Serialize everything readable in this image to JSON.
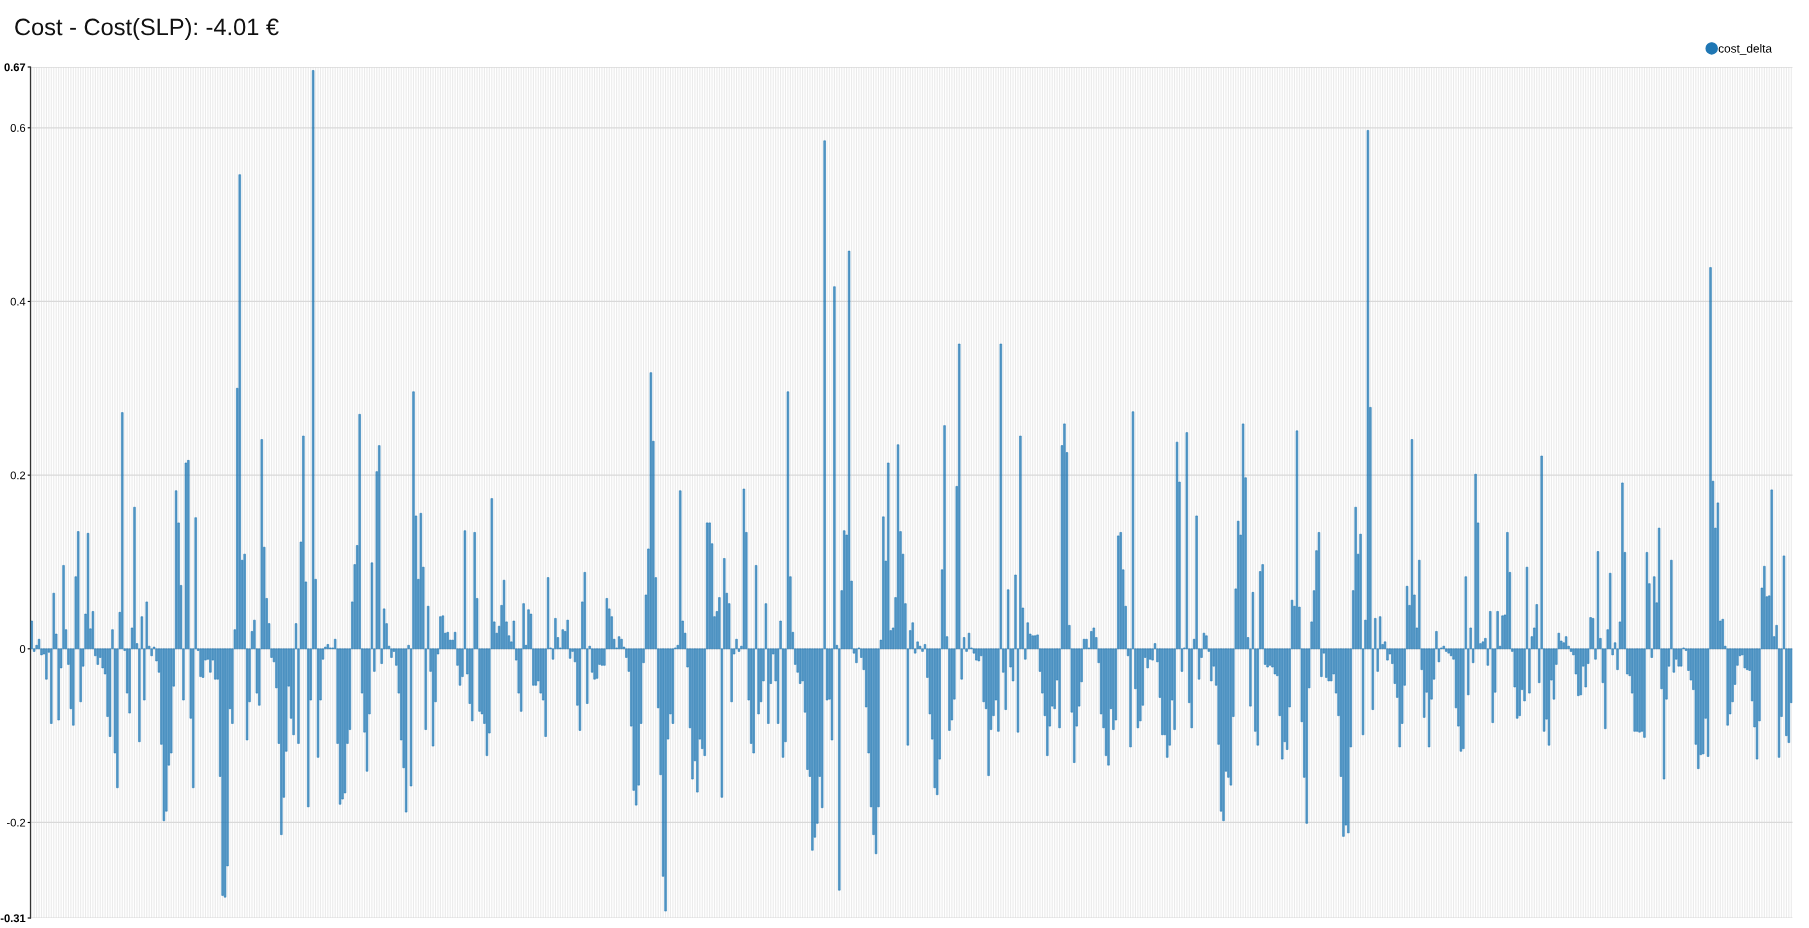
{
  "chart_data": {
    "type": "bar",
    "title": "Cost - Cost(SLP): -4.01 €",
    "categories": [
      null,
      null,
      null,
      null,
      null,
      null,
      null,
      null,
      null,
      null,
      null,
      null,
      null,
      null,
      null,
      null,
      null,
      null,
      null,
      null,
      null,
      null,
      null,
      null,
      null,
      null,
      null,
      null,
      null,
      null,
      null,
      null,
      null,
      null,
      null,
      null,
      null,
      null,
      null,
      null,
      null,
      null,
      null,
      null,
      null,
      null,
      null,
      null,
      null,
      null,
      null,
      null,
      null,
      null,
      null,
      null,
      null,
      null,
      null,
      null,
      null,
      null,
      null,
      null,
      null,
      null,
      null,
      null,
      null,
      null,
      null,
      null,
      null,
      null,
      null,
      null,
      null,
      null,
      null,
      null,
      null,
      null,
      null,
      null,
      null,
      null,
      null,
      null,
      null,
      null,
      null,
      null,
      null,
      null,
      null,
      null,
      null,
      null,
      null,
      null,
      null,
      null,
      null,
      null,
      null,
      null,
      null,
      null,
      null,
      null,
      null,
      null,
      null,
      null,
      null,
      null,
      null,
      null,
      null,
      null,
      null,
      null,
      null,
      null,
      null,
      null,
      null,
      null,
      null,
      null,
      null,
      null,
      null,
      null,
      null,
      null,
      null,
      null,
      null,
      null,
      null,
      null,
      null,
      null,
      null,
      null,
      null,
      null,
      null,
      null,
      null,
      null,
      null,
      null,
      null,
      null,
      null,
      null,
      null,
      null,
      null,
      null,
      null,
      null,
      null,
      null,
      null,
      null,
      null,
      null,
      null,
      null,
      null,
      null,
      null,
      null,
      null,
      null,
      null,
      null,
      null,
      null,
      null,
      null,
      null,
      null,
      null,
      null,
      null,
      null,
      null,
      null,
      null,
      null,
      null,
      null,
      null,
      null,
      null,
      null,
      null,
      null,
      null,
      null,
      null,
      null,
      null,
      null,
      null,
      null,
      null,
      null,
      null,
      null,
      null,
      null,
      null,
      null,
      null,
      null,
      null,
      null,
      null,
      null,
      null,
      null,
      null,
      null,
      null,
      null,
      null,
      null,
      null,
      null,
      null,
      null,
      null,
      null,
      null,
      null,
      null,
      null,
      null,
      null,
      null,
      null,
      null,
      null,
      null,
      null,
      null,
      null,
      null,
      null,
      null,
      null,
      null,
      null,
      null,
      null,
      null,
      null,
      null,
      null,
      null,
      null,
      null,
      null,
      null,
      null,
      null,
      null,
      null,
      null,
      null,
      null,
      null,
      null,
      null,
      null,
      null,
      null,
      null,
      null,
      null,
      null,
      null,
      null,
      null,
      null,
      null,
      null,
      null,
      null,
      null,
      null,
      null,
      null,
      null,
      null,
      null,
      null,
      null,
      null,
      null,
      null,
      null,
      null,
      null,
      null,
      null,
      null,
      null,
      null,
      null,
      null,
      null,
      null,
      null,
      null,
      null,
      null,
      null,
      null,
      null,
      null,
      null,
      null,
      null,
      null,
      null,
      null,
      null,
      null,
      null,
      null,
      null,
      null,
      null,
      null,
      null,
      null,
      null,
      null,
      null,
      null,
      null,
      null,
      null,
      null,
      null,
      null,
      null,
      null,
      null,
      null,
      null,
      null,
      null,
      null,
      null,
      null,
      null,
      null,
      null,
      null,
      null,
      null,
      null,
      null,
      null,
      null,
      null,
      null,
      null,
      null,
      null,
      null,
      null,
      null,
      null,
      null,
      null,
      null,
      null,
      null,
      null,
      null,
      null,
      null,
      null,
      null,
      null,
      null,
      null,
      null,
      null,
      null,
      null,
      null,
      null,
      null,
      null,
      null,
      null,
      null,
      null,
      null,
      null,
      null,
      null,
      null,
      null,
      null,
      null,
      null,
      null,
      null,
      null,
      null,
      null,
      null,
      null,
      null,
      null,
      null,
      null,
      null,
      null,
      null,
      null,
      null,
      null,
      null,
      null,
      null,
      null,
      null,
      null,
      null,
      null,
      null,
      null,
      null,
      null,
      null,
      null,
      null,
      null,
      null,
      null,
      null,
      null,
      null,
      null,
      null,
      null,
      null,
      null,
      null,
      null,
      null,
      null,
      null,
      null,
      null,
      null,
      null,
      null,
      null,
      null,
      null,
      null,
      null,
      null,
      null,
      null,
      null,
      null,
      null,
      null,
      null,
      null,
      null,
      null,
      null,
      null,
      null,
      null,
      null,
      null,
      null,
      null,
      null,
      null,
      null,
      null,
      null,
      null,
      null,
      null,
      null,
      null,
      null,
      null,
      null,
      null,
      null,
      null,
      null,
      null,
      null,
      null,
      null,
      null,
      null,
      null,
      null,
      null,
      null,
      null,
      null,
      null,
      null,
      null,
      null,
      null,
      null,
      null,
      null,
      null,
      null,
      null,
      null,
      null,
      null,
      null,
      null,
      null,
      null,
      null,
      null,
      null,
      null,
      null,
      null,
      null,
      null,
      null,
      null,
      null,
      null,
      null,
      null,
      null,
      null,
      null,
      null,
      null,
      null,
      null,
      null,
      null,
      null,
      null,
      null,
      null,
      null,
      null,
      null,
      null,
      null,
      null,
      null,
      null,
      null,
      null,
      null,
      null,
      null,
      null,
      null,
      null,
      null,
      null,
      null,
      null,
      null,
      null,
      null,
      null,
      null,
      null,
      null,
      null,
      null,
      null,
      null,
      null,
      null,
      null,
      null,
      null,
      null,
      null,
      null,
      null,
      null,
      null,
      null,
      null,
      null,
      null,
      null,
      null,
      null,
      null,
      null,
      null,
      null,
      null,
      null,
      null,
      null,
      null,
      null,
      null,
      null,
      null,
      null,
      null,
      null,
      null,
      null,
      null,
      null,
      null,
      null,
      null,
      null,
      null,
      null,
      null,
      null,
      null,
      null,
      null,
      null,
      null,
      null,
      null,
      null,
      null,
      null,
      null,
      null,
      null,
      null,
      null,
      null,
      null,
      null,
      null,
      null,
      null,
      null,
      null,
      null,
      null,
      null,
      null,
      null,
      null,
      null,
      null,
      null,
      null,
      null,
      null,
      null,
      null,
      null,
      null,
      null,
      null,
      null,
      null,
      null,
      null,
      null,
      null,
      null,
      null,
      null,
      null,
      null,
      null,
      null,
      null,
      null,
      null,
      null,
      null,
      null,
      null,
      null,
      null,
      null,
      null,
      null,
      null,
      null,
      null,
      null,
      null,
      null,
      null,
      null,
      null,
      null
    ],
    "series": [
      {
        "name": "cost_delta",
        "color": "#1f77b4",
        "values": [
          0.032,
          -0.003,
          0.004,
          0.011,
          -0.007,
          -0.006,
          -0.035,
          -0.004,
          -0.086,
          0.064,
          0.017,
          -0.082,
          -0.022,
          0.096,
          0.022,
          -0.018,
          -0.069,
          -0.088,
          0.083,
          0.135,
          -0.061,
          -0.02,
          0.04,
          0.133,
          0.023,
          0.043,
          -0.008,
          -0.018,
          -0.01,
          -0.022,
          -0.029,
          -0.078,
          -0.101,
          0.022,
          -0.12,
          -0.16,
          0.042,
          0.272,
          -0.002,
          -0.051,
          -0.074,
          0.024,
          0.163,
          0.006,
          -0.107,
          0.037,
          -0.059,
          0.054,
          0.003,
          -0.008,
          0.002,
          -0.014,
          -0.027,
          -0.11,
          -0.198,
          -0.187,
          -0.134,
          -0.12,
          -0.043,
          0.182,
          0.145,
          0.073,
          -0.059,
          0.214,
          0.217,
          -0.08,
          -0.16,
          0.151,
          -0.002,
          -0.032,
          -0.033,
          -0.013,
          -0.012,
          -0.027,
          -0.013,
          -0.035,
          -0.035,
          -0.147,
          -0.284,
          -0.286,
          -0.25,
          -0.069,
          -0.086,
          0.022,
          0.3,
          0.546,
          0.102,
          0.109,
          -0.105,
          -0.061,
          0.02,
          0.033,
          -0.051,
          -0.065,
          0.241,
          0.117,
          0.058,
          0.029,
          -0.01,
          -0.015,
          -0.045,
          -0.109,
          -0.214,
          -0.171,
          -0.118,
          -0.043,
          -0.08,
          -0.099,
          0.029,
          -0.109,
          0.123,
          0.245,
          0.077,
          -0.182,
          -0.059,
          0.666,
          0.08,
          -0.125,
          -0.059,
          -0.012,
          0.002,
          0.005,
          0.001,
          0.001,
          0.011,
          -0.109,
          -0.179,
          -0.173,
          -0.166,
          -0.109,
          -0.093,
          0.054,
          0.097,
          0.119,
          0.27,
          -0.051,
          -0.096,
          -0.141,
          -0.075,
          0.099,
          -0.026,
          0.204,
          0.234,
          -0.017,
          0.046,
          0.029,
          0.003,
          -0.01,
          -0.003,
          -0.019,
          -0.051,
          -0.105,
          -0.137,
          -0.188,
          0.004,
          -0.158,
          0.296,
          0.153,
          0.08,
          0.156,
          0.094,
          -0.093,
          0.049,
          -0.026,
          -0.112,
          -0.061,
          -0.006,
          0.037,
          0.038,
          0.018,
          0.019,
          0.01,
          0.01,
          0.019,
          -0.019,
          -0.042,
          -0.032,
          0.136,
          -0.029,
          -0.063,
          -0.083,
          0.134,
          0.058,
          -0.072,
          -0.075,
          -0.086,
          -0.123,
          -0.097,
          0.173,
          0.031,
          0.018,
          0.026,
          0.05,
          0.079,
          0.031,
          0.015,
          0.008,
          0.032,
          -0.013,
          -0.051,
          -0.072,
          0.052,
          0.004,
          0.045,
          0.04,
          -0.042,
          -0.042,
          -0.037,
          -0.051,
          -0.059,
          -0.101,
          0.082,
          0.001,
          -0.012,
          0.035,
          0.013,
          0.001,
          0.022,
          0.02,
          0.033,
          -0.011,
          -0.003,
          -0.015,
          -0.065,
          -0.094,
          0.054,
          0.088,
          -0.063,
          0.003,
          -0.027,
          -0.035,
          -0.034,
          -0.018,
          -0.019,
          -0.019,
          0.058,
          0.046,
          0.037,
          0.011,
          0.001,
          0.014,
          0.011,
          0.002,
          -0.01,
          -0.026,
          -0.089,
          -0.163,
          -0.18,
          -0.157,
          -0.086,
          -0.016,
          0.062,
          0.115,
          0.318,
          0.239,
          0.082,
          -0.068,
          -0.145,
          -0.262,
          -0.302,
          -0.104,
          -0.075,
          -0.086,
          0.001,
          0.004,
          0.182,
          0.032,
          0.018,
          -0.021,
          -0.091,
          -0.15,
          -0.129,
          -0.165,
          -0.104,
          -0.115,
          -0.123,
          0.145,
          0.145,
          0.121,
          0.037,
          0.043,
          0.059,
          -0.171,
          0.104,
          0.064,
          0.052,
          -0.061,
          -0.006,
          0.011,
          -0.003,
          0.003,
          0.184,
          0.134,
          -0.059,
          -0.109,
          -0.12,
          0.096,
          -0.075,
          -0.061,
          -0.037,
          0.052,
          -0.086,
          -0.04,
          -0.006,
          -0.037,
          -0.086,
          0.032,
          -0.125,
          -0.107,
          0.296,
          0.083,
          0.019,
          -0.018,
          -0.027,
          -0.04,
          -0.037,
          -0.073,
          -0.139,
          -0.147,
          -0.232,
          -0.217,
          -0.201,
          -0.147,
          -0.183,
          0.585,
          -0.059,
          -0.058,
          -0.105,
          0.417,
          0.004,
          -0.278,
          0.067,
          0.136,
          0.131,
          0.458,
          0.078,
          -0.005,
          -0.016,
          0.001,
          -0.01,
          -0.024,
          -0.067,
          -0.12,
          -0.182,
          -0.214,
          -0.236,
          -0.182,
          0.01,
          0.152,
          0.101,
          0.214,
          0.021,
          0.024,
          0.059,
          0.235,
          0.135,
          0.109,
          0.052,
          -0.111,
          0.021,
          0.03,
          -0.005,
          0.008,
          0.003,
          -0.003,
          0.005,
          -0.033,
          -0.075,
          -0.104,
          -0.16,
          -0.168,
          -0.127,
          0.091,
          0.257,
          0.014,
          -0.094,
          -0.082,
          -0.058,
          0.187,
          0.351,
          -0.035,
          0.013,
          -0.003,
          0.018,
          0.001,
          -0.005,
          -0.013,
          -0.014,
          -0.008,
          -0.061,
          -0.069,
          -0.146,
          -0.093,
          -0.077,
          -0.059,
          -0.095,
          0.351,
          -0.027,
          -0.07,
          0.068,
          -0.021,
          -0.037,
          0.085,
          -0.096,
          0.245,
          0.047,
          -0.012,
          0.03,
          0.017,
          0.015,
          0.015,
          0.016,
          -0.026,
          -0.051,
          -0.077,
          -0.123,
          -0.089,
          -0.066,
          -0.069,
          -0.036,
          -0.091,
          0.234,
          0.259,
          0.226,
          0.027,
          -0.073,
          -0.131,
          -0.089,
          -0.066,
          -0.038,
          0.011,
          0.011,
          0.001,
          0.02,
          0.024,
          0.013,
          -0.016,
          -0.075,
          -0.091,
          -0.123,
          -0.134,
          -0.069,
          -0.093,
          -0.082,
          0.13,
          0.134,
          0.091,
          0.049,
          -0.008,
          -0.113,
          0.273,
          -0.046,
          -0.091,
          -0.083,
          -0.065,
          -0.01,
          -0.022,
          -0.012,
          -0.013,
          0.006,
          -0.015,
          -0.056,
          -0.099,
          -0.099,
          -0.125,
          -0.111,
          -0.059,
          -0.093,
          0.238,
          0.192,
          -0.026,
          0.001,
          0.249,
          -0.062,
          -0.091,
          0.011,
          0.153,
          -0.035,
          -0.01,
          0.018,
          0.015,
          -0.003,
          -0.037,
          -0.02,
          -0.042,
          -0.11,
          -0.187,
          -0.198,
          -0.141,
          -0.148,
          -0.157,
          -0.078,
          0.069,
          0.147,
          0.131,
          0.259,
          0.197,
          0.013,
          -0.066,
          0.065,
          -0.095,
          -0.111,
          0.089,
          0.097,
          -0.018,
          -0.021,
          -0.019,
          -0.021,
          -0.029,
          -0.031,
          -0.077,
          -0.127,
          -0.107,
          -0.116,
          -0.067,
          0.056,
          0.049,
          0.251,
          0.048,
          -0.084,
          -0.148,
          -0.201,
          -0.045,
          0.031,
          0.067,
          0.113,
          0.134,
          -0.032,
          -0.005,
          -0.033,
          -0.037,
          -0.037,
          -0.029,
          -0.051,
          -0.077,
          -0.147,
          -0.216,
          -0.203,
          -0.212,
          -0.113,
          0.067,
          0.163,
          0.109,
          0.132,
          -0.099,
          0.033,
          0.597,
          0.278,
          -0.07,
          0.035,
          -0.026,
          0.037,
          0.005,
          0.008,
          -0.013,
          -0.006,
          -0.017,
          -0.04,
          -0.056,
          -0.113,
          -0.086,
          -0.042,
          0.072,
          0.05,
          0.241,
          0.062,
          0.024,
          0.102,
          -0.024,
          -0.079,
          -0.05,
          -0.113,
          -0.058,
          -0.035,
          0.02,
          -0.015,
          0.001,
          0.003,
          -0.003,
          -0.005,
          -0.008,
          -0.012,
          -0.068,
          -0.089,
          -0.118,
          -0.115,
          0.083,
          -0.053,
          0.024,
          -0.016,
          0.201,
          0.145,
          0.006,
          0.008,
          0.012,
          -0.019,
          0.043,
          -0.085,
          -0.05,
          0.043,
          0.003,
          0.038,
          0.039,
          0.134,
          0.088,
          -0.003,
          -0.044,
          -0.08,
          -0.077,
          -0.047,
          -0.06,
          0.094,
          -0.051,
          0.014,
          0.024,
          0.051,
          -0.039,
          0.222,
          -0.095,
          -0.081,
          -0.111,
          -0.036,
          -0.058,
          -0.018,
          0.018,
          0.009,
          0.007,
          0.014,
          0.003,
          -0.003,
          -0.007,
          -0.029,
          -0.054,
          -0.053,
          -0.02,
          -0.044,
          -0.017,
          0.036,
          0.035,
          -0.012,
          0.112,
          0.012,
          -0.039,
          -0.092,
          0.022,
          0.087,
          -0.007,
          0.007,
          -0.024,
          0.031,
          0.191,
          0.111,
          -0.029,
          -0.031,
          -0.051,
          -0.095,
          -0.095,
          -0.096,
          -0.095,
          -0.102,
          0.111,
          0.075,
          -0.01,
          0.083,
          0.053,
          0.139,
          -0.046,
          -0.15,
          -0.058,
          -0.02,
          0.102,
          -0.027,
          -0.012,
          -0.02,
          -0.02,
          0.001,
          -0.002,
          -0.025,
          -0.036,
          -0.047,
          -0.11,
          -0.138,
          -0.122,
          -0.121,
          -0.08,
          -0.124,
          0.439,
          0.193,
          0.139,
          0.168,
          0.032,
          0.034,
          0.003,
          -0.088,
          -0.075,
          -0.061,
          -0.041,
          -0.019,
          -0.008,
          -0.007,
          -0.022,
          -0.024,
          -0.025,
          -0.06,
          -0.09,
          -0.127,
          -0.083,
          0.07,
          0.095,
          0.06,
          0.061,
          0.183,
          0.014,
          0.027,
          -0.125,
          -0.078,
          0.107,
          -0.1,
          -0.108,
          -0.062
        ]
      }
    ],
    "ylim": [
      -0.31,
      0.67
    ],
    "yticks": [
      -0.31,
      -0.2,
      0,
      0.2,
      0.4,
      0.6,
      0.67
    ],
    "grid": true,
    "legend": "top right",
    "tick_labels": "y"
  }
}
